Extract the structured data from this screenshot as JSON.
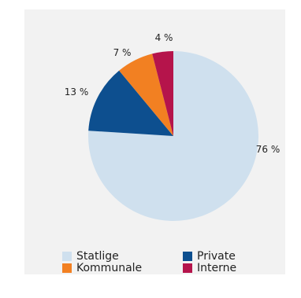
{
  "chart_data": {
    "type": "pie",
    "title": "",
    "slices": [
      {
        "name": "Statlige",
        "value": 76,
        "label": "76 %",
        "color": "#cfe0ee"
      },
      {
        "name": "Private",
        "value": 13,
        "label": "13 %",
        "color": "#0d4f8f"
      },
      {
        "name": "Kommunale",
        "value": 7,
        "label": "7 %",
        "color": "#f28022"
      },
      {
        "name": "Interne",
        "value": 4,
        "label": "4 %",
        "color": "#b5144b"
      }
    ],
    "legend_position": "bottom"
  }
}
